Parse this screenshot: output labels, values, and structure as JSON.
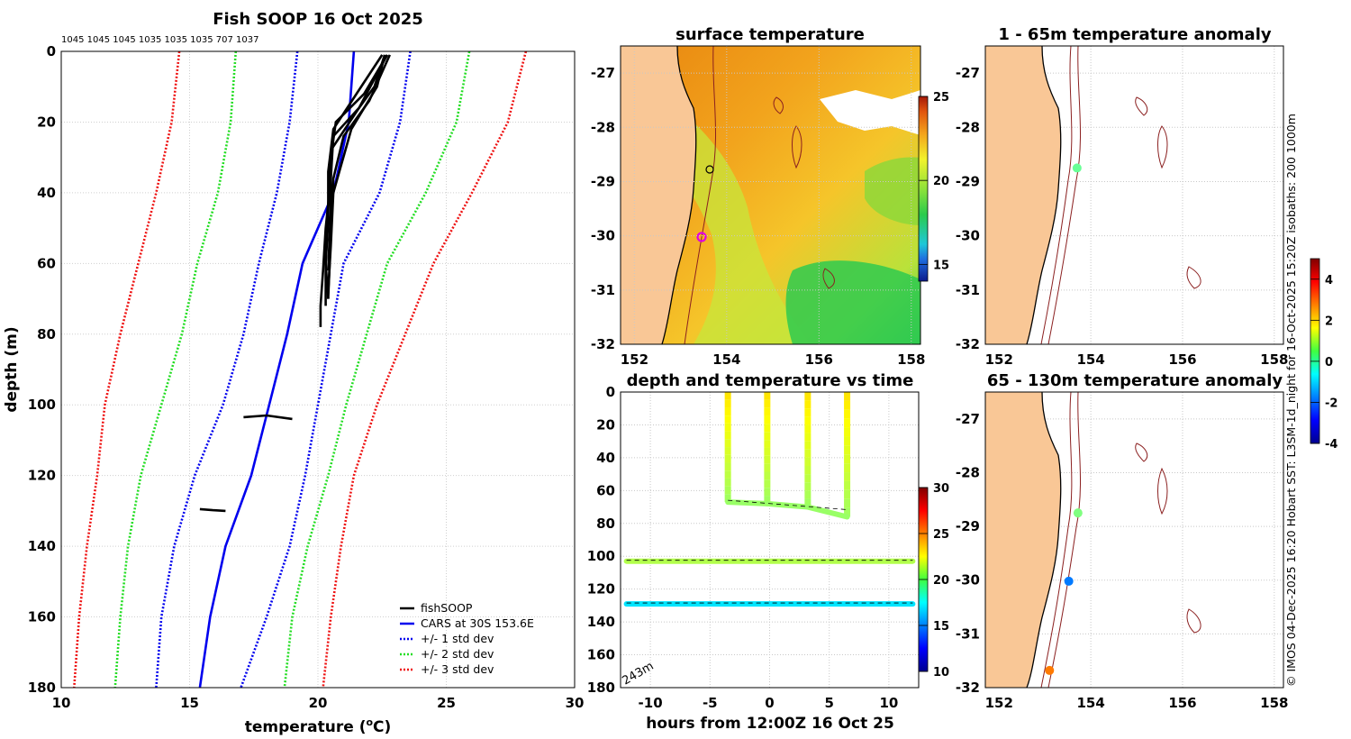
{
  "chart_data": [
    {
      "type": "line",
      "title": "Fish SOOP 16 Oct 2025",
      "subtitle": "1045 1045 1045 1035 1035 1035 707 1037",
      "xlabel": "temperature (°C)",
      "xlabel_main": "temperature (",
      "xlabel_sup": "o",
      "xlabel_tail": "C)",
      "ylabel": "depth (m)",
      "xlim": [
        10,
        30
      ],
      "ylim": [
        180,
        0
      ],
      "xticks": [
        "10",
        "15",
        "20",
        "25",
        "30"
      ],
      "yticks": [
        "0",
        "20",
        "40",
        "60",
        "80",
        "100",
        "120",
        "140",
        "160",
        "180"
      ],
      "legend": [
        "fishSOOP",
        "CARS at 30S 153.6E",
        "+/- 1 std dev",
        "+/- 2 std dev",
        "+/- 3 std dev"
      ],
      "legend_position": "bottom-right",
      "depth": [
        0,
        20,
        40,
        60,
        80,
        100,
        120,
        140,
        160,
        180
      ],
      "series": [
        {
          "name": "CARS at 30S 153.6E",
          "color": "#0000ee",
          "temperature": [
            21.4,
            21.2,
            20.6,
            19.4,
            18.8,
            18.1,
            17.4,
            16.4,
            15.8,
            15.4
          ]
        },
        {
          "name": "+1 std dev",
          "color": "#0000ee",
          "temperature": [
            23.6,
            23.2,
            22.4,
            21.0,
            20.5,
            20.0,
            19.5,
            18.9,
            18.0,
            17.0
          ]
        },
        {
          "name": "-1 std dev",
          "color": "#0000ee",
          "temperature": [
            19.2,
            18.9,
            18.4,
            17.7,
            17.1,
            16.3,
            15.2,
            14.4,
            13.9,
            13.7
          ]
        },
        {
          "name": "+2 std dev",
          "color": "#22dd22",
          "temperature": [
            25.9,
            25.4,
            24.2,
            22.7,
            21.9,
            21.1,
            20.4,
            19.6,
            19.0,
            18.7
          ]
        },
        {
          "name": "-2 std dev",
          "color": "#22dd22",
          "temperature": [
            16.8,
            16.6,
            16.1,
            15.3,
            14.7,
            13.9,
            13.1,
            12.6,
            12.3,
            12.1
          ]
        },
        {
          "name": "+3 std dev",
          "color": "#ee1111",
          "temperature": [
            28.1,
            27.4,
            26.0,
            24.5,
            23.4,
            22.3,
            21.4,
            20.9,
            20.5,
            20.2
          ]
        },
        {
          "name": "-3 std dev",
          "color": "#ee1111",
          "temperature": [
            14.6,
            14.3,
            13.7,
            13.0,
            12.3,
            11.7,
            11.4,
            11.0,
            10.7,
            10.5
          ]
        }
      ],
      "fishsoop_profiles": [
        {
          "temperature": [
            22.6,
            22.2,
            21.6,
            20.6,
            20.5,
            20.3,
            20.2,
            20.1,
            20.1
          ],
          "depth": [
            1,
            10,
            16,
            24,
            36,
            50,
            62,
            72,
            78
          ]
        },
        {
          "temperature": [
            22.7,
            21.8,
            20.7,
            20.5,
            20.4,
            20.3,
            20.3
          ],
          "depth": [
            1,
            12,
            20,
            30,
            45,
            60,
            72
          ]
        },
        {
          "temperature": [
            22.5,
            21.5,
            20.6,
            20.4,
            20.4,
            20.3,
            20.4
          ],
          "depth": [
            1,
            12,
            22,
            34,
            48,
            60,
            70
          ]
        },
        {
          "temperature": [
            22.8,
            22.0,
            21.0,
            20.6,
            20.5,
            20.4
          ],
          "depth": [
            1,
            14,
            24,
            36,
            52,
            70
          ]
        },
        {
          "temperature": [
            22.6,
            22.3,
            21.3,
            20.6,
            20.5,
            20.4
          ],
          "depth": [
            1,
            10,
            22,
            40,
            55,
            68
          ]
        },
        {
          "temperature": [
            22.7,
            21.6,
            20.5,
            20.5,
            20.4
          ],
          "depth": [
            1,
            16,
            28,
            44,
            62
          ]
        },
        {
          "temperature": [
            17.1,
            18.0,
            19.0
          ],
          "depth": [
            103.5,
            103.0,
            104.0
          ]
        },
        {
          "temperature": [
            15.4,
            15.9,
            16.4
          ],
          "depth": [
            129.5,
            129.8,
            130.0
          ]
        }
      ]
    },
    {
      "type": "heatmap",
      "title": "surface temperature",
      "xlim": [
        151.7,
        158.2
      ],
      "ylim": [
        -32,
        -26.5
      ],
      "xticks": [
        "152",
        "154",
        "156",
        "158"
      ],
      "yticks": [
        "-27",
        "-28",
        "-29",
        "-30",
        "-31",
        "-32"
      ],
      "colorbar": {
        "min": 14,
        "max": 25,
        "ticks": [
          "15",
          "20",
          "25"
        ]
      }
    },
    {
      "type": "scatter",
      "title": "depth and temperature vs time",
      "xlabel": "hours from 12:00Z 16 Oct 25",
      "xlim": [
        -12.5,
        12.5
      ],
      "ylim": [
        180,
        0
      ],
      "xticks": [
        "-10",
        "-5",
        "0",
        "5",
        "10"
      ],
      "yticks": [
        "0",
        "20",
        "40",
        "60",
        "80",
        "100",
        "120",
        "140",
        "160",
        "180"
      ],
      "annotation": "243m",
      "colorbar": {
        "min": 10,
        "max": 30,
        "ticks": [
          "10",
          "15",
          "20",
          "25",
          "30"
        ]
      },
      "casts": [
        {
          "hours": -3.5,
          "bottom_depth": 67
        },
        {
          "hours": -0.2,
          "bottom_depth": 68
        },
        {
          "hours": 3.2,
          "bottom_depth": 70
        },
        {
          "hours": 6.5,
          "bottom_depth": 76
        }
      ],
      "bottom_depth_series": [
        {
          "depth": 103,
          "temperature": 21,
          "hours": [
            -12.0,
            12.0
          ]
        },
        {
          "depth": 129,
          "temperature": 17,
          "hours": [
            -12.0,
            12.0
          ]
        }
      ]
    },
    {
      "type": "map",
      "title": "1 - 65m temperature anomaly",
      "xlim": [
        151.7,
        158.2
      ],
      "ylim": [
        -32,
        -26.5
      ],
      "xticks": [
        "152",
        "154",
        "156",
        "158"
      ],
      "yticks": [
        "-27",
        "-28",
        "-29",
        "-30",
        "-31",
        "-32"
      ],
      "points": [
        {
          "lon": 153.7,
          "lat": -28.75,
          "anomaly": 0.3
        }
      ]
    },
    {
      "type": "map",
      "title": "65 - 130m temperature anomaly",
      "xlim": [
        151.7,
        158.2
      ],
      "ylim": [
        -32,
        -26.5
      ],
      "xticks": [
        "152",
        "154",
        "156",
        "158"
      ],
      "yticks": [
        "-27",
        "-28",
        "-29",
        "-30",
        "-31",
        "-32"
      ],
      "points": [
        {
          "lon": 153.72,
          "lat": -28.75,
          "anomaly": 0.5
        },
        {
          "lon": 153.52,
          "lat": -30.02,
          "anomaly": -1.8
        },
        {
          "lon": 153.1,
          "lat": -31.68,
          "anomaly": 2.8
        }
      ],
      "colorbar": {
        "min": -4,
        "max": 5,
        "ticks": [
          "4",
          "2",
          "0",
          "-2",
          "-4"
        ]
      }
    }
  ],
  "side_note": "© IMOS 04-Dec-2025 16:20 Hobart SST: L3SM-1d_night for 16-Oct-2025 15:20Z isobaths: 200  1000m"
}
